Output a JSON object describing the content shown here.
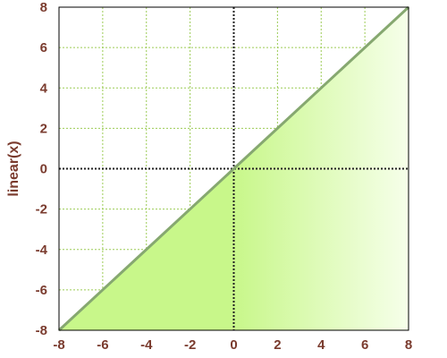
{
  "chart_data": {
    "type": "area",
    "title": "",
    "xlabel": "",
    "ylabel": "linear(x)",
    "xlim": [
      -8,
      8
    ],
    "ylim": [
      -8,
      8
    ],
    "x_ticks": [
      "-8",
      "-6",
      "-4",
      "-2",
      "0",
      "2",
      "4",
      "6",
      "8"
    ],
    "y_ticks": [
      "-8",
      "-6",
      "-4",
      "-2",
      "0",
      "2",
      "4",
      "6",
      "8"
    ],
    "grid": true,
    "series": [
      {
        "x": [
          -8,
          8
        ],
        "y": [
          -8,
          8
        ]
      }
    ],
    "colors": {
      "line": "#86a870",
      "fill_left": "#c8f78a",
      "fill_right": "#f6ffea",
      "grid": "#9ccc55",
      "zero_axis": "#222222",
      "text": "#7a3b2e"
    }
  }
}
